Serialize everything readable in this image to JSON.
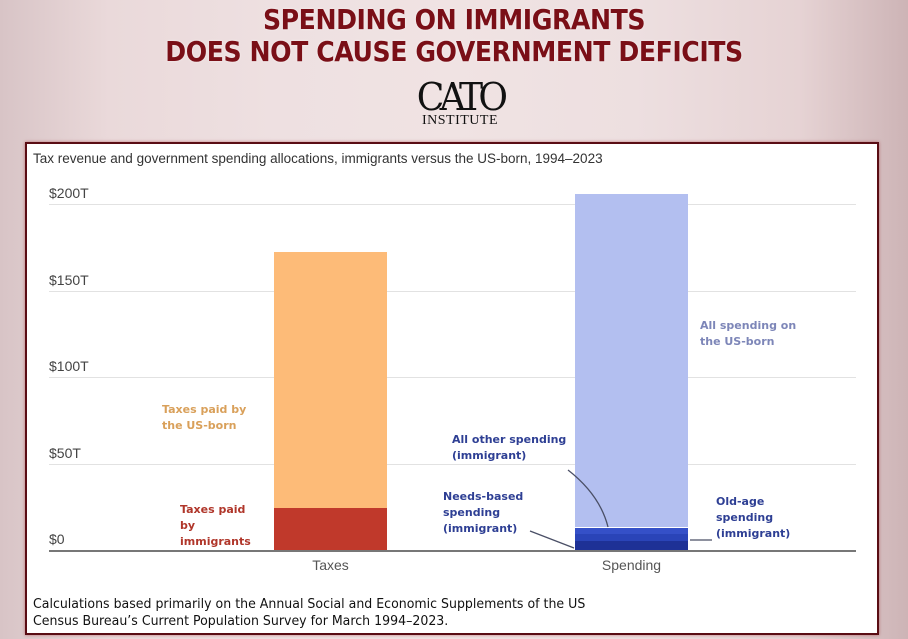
{
  "headline": {
    "line1": "SPENDING ON IMMIGRANTS",
    "line2": "DOES NOT CAUSE GOVERNMENT DEFICITS"
  },
  "logo": {
    "name": "CATO",
    "subtitle": "INSTITUTE"
  },
  "colors": {
    "headline": "#7a0f17",
    "taxes_us_born": "#fdbb78",
    "taxes_immigrants": "#c0392b",
    "spending_us_born": "#b3bff0",
    "spending_other_immigrant": "#3550c8",
    "spending_needs_based_immigrant": "#2a44b8",
    "spending_old_age_immigrant": "#1e3196",
    "label_us_born_taxes": "#d9a05a",
    "label_immigrant_taxes": "#b0362a",
    "label_spending_us_born": "#7d86b8",
    "label_spending_immigrant": "#2e3f94"
  },
  "chart_data": {
    "type": "bar",
    "stacked": true,
    "title": "Tax revenue and government spending allocations, immigrants versus the US-born, 1994–2023",
    "xlabel": "",
    "ylabel": "",
    "categories": [
      "Taxes",
      "Spending"
    ],
    "ylim": [
      0,
      200
    ],
    "y_unit": "Trillion USD",
    "yticks": [
      0,
      50,
      100,
      150,
      200
    ],
    "ytick_labels": [
      "$0",
      "$50T",
      "$100T",
      "$150T",
      "$200T"
    ],
    "grid": true,
    "legend": "none (direct labels)",
    "series": [
      {
        "name": "Taxes paid by immigrants",
        "category": "Taxes",
        "value": 24
      },
      {
        "name": "Taxes paid by the US-born",
        "category": "Taxes",
        "value": 148
      },
      {
        "name": "Old-age spending (immigrant)",
        "category": "Spending",
        "value": 5
      },
      {
        "name": "Needs-based spending (immigrant)",
        "category": "Spending",
        "value": 4
      },
      {
        "name": "All other spending (immigrant)",
        "category": "Spending",
        "value": 4
      },
      {
        "name": "All spending on the US-born",
        "category": "Spending",
        "value": 193
      }
    ],
    "annotations": {
      "taxes_us_born": [
        "Taxes paid by",
        "the US-born"
      ],
      "taxes_immigrants": [
        "Taxes paid",
        "by",
        "immigrants"
      ],
      "spending_us_born": [
        "All spending on",
        "the US-born"
      ],
      "spending_other": [
        "All other spending",
        "(immigrant)"
      ],
      "spending_needs": [
        "Needs-based",
        "spending",
        "(immigrant)"
      ],
      "spending_old_age": [
        "Old-age",
        "spending",
        "(immigrant)"
      ]
    },
    "footnote": [
      "Calculations based primarily on the Annual Social and Economic Supplements of the US",
      "Census Bureau’s Current Population Survey for March 1994–2023."
    ]
  }
}
